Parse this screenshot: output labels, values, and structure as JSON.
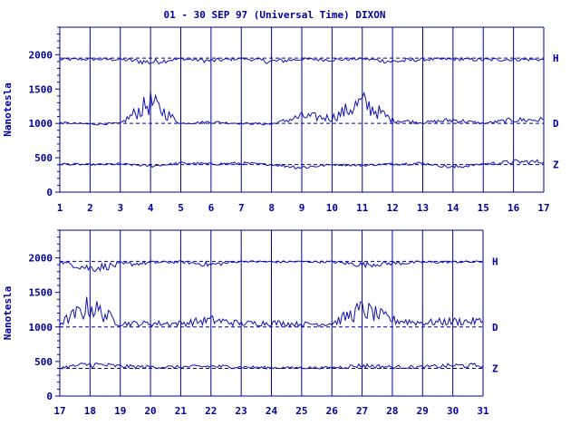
{
  "colors": {
    "ink": "#0000a0",
    "trace": "#1010b8",
    "background": "#ffffff"
  },
  "chart_data": [
    {
      "type": "line",
      "title": "01 - 30 SEP 97 (Universal Time) DIXON",
      "ylabel": "Nanotesla",
      "xlabel": "",
      "xlim": [
        1,
        17
      ],
      "ylim": [
        0,
        2400
      ],
      "grid": "vertical day lines",
      "x_tick_labels": [
        "1",
        "2",
        "3",
        "4",
        "5",
        "6",
        "7",
        "8",
        "9",
        "10",
        "11",
        "12",
        "13",
        "14",
        "15",
        "16",
        "17"
      ],
      "y_tick_labels": [
        "0",
        "500",
        "1000",
        "1500",
        "2000"
      ],
      "y_ticks": [
        0,
        500,
        1000,
        1500,
        2000
      ],
      "series": [
        {
          "name": "H",
          "baseline": 1950,
          "values": [
            1930,
            1935,
            1930,
            1890,
            1940,
            1910,
            1945,
            1900,
            1935,
            1925,
            1940,
            1900,
            1930,
            1935,
            1925,
            1930
          ]
        },
        {
          "name": "D",
          "baseline": 1000,
          "values": [
            1010,
            990,
            1000,
            1300,
            1000,
            1020,
            1000,
            990,
            1100,
            1080,
            1300,
            1050,
            1010,
            1050,
            1000,
            1050
          ]
        },
        {
          "name": "Z",
          "baseline": 400,
          "values": [
            410,
            400,
            410,
            380,
            420,
            410,
            420,
            400,
            360,
            400,
            390,
            410,
            420,
            360,
            410,
            440
          ]
        }
      ]
    },
    {
      "type": "line",
      "title": "",
      "ylabel": "Nanotesla",
      "xlabel": "",
      "xlim": [
        17,
        31
      ],
      "ylim": [
        0,
        2400
      ],
      "grid": "vertical day lines",
      "x_tick_labels": [
        "17",
        "18",
        "19",
        "20",
        "21",
        "22",
        "23",
        "24",
        "25",
        "26",
        "27",
        "28",
        "29",
        "30",
        "31"
      ],
      "y_tick_labels": [
        "0",
        "500",
        "1000",
        "1500",
        "2000"
      ],
      "y_ticks": [
        0,
        500,
        1000,
        1500,
        2000
      ],
      "series": [
        {
          "name": "H",
          "baseline": 1950,
          "values": [
            1940,
            1850,
            1900,
            1930,
            1940,
            1900,
            1950,
            1940,
            1945,
            1940,
            1900,
            1920,
            1935,
            1940
          ]
        },
        {
          "name": "D",
          "baseline": 1000,
          "values": [
            1050,
            1300,
            1050,
            1050,
            1050,
            1100,
            1050,
            1060,
            1040,
            1050,
            1250,
            1100,
            1060,
            1080
          ]
        },
        {
          "name": "Z",
          "baseline": 400,
          "values": [
            410,
            460,
            430,
            420,
            420,
            430,
            420,
            410,
            410,
            410,
            440,
            420,
            420,
            440
          ]
        }
      ]
    }
  ]
}
